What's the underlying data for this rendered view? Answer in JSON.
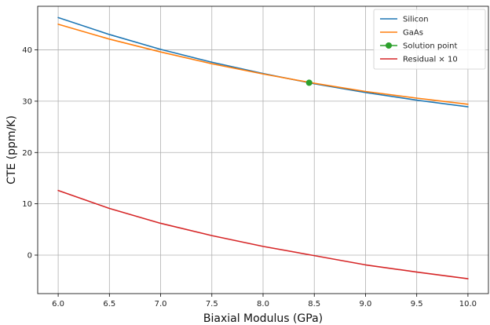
{
  "chart_data": {
    "type": "line",
    "title": "",
    "xlabel": "Biaxial Modulus (GPa)",
    "ylabel": "CTE (ppm/K)",
    "xlim": [
      5.8,
      10.2
    ],
    "ylim": [
      -7.5,
      48.5
    ],
    "xticks": [
      6.0,
      6.5,
      7.0,
      7.5,
      8.0,
      8.5,
      9.0,
      9.5,
      10.0
    ],
    "xtick_labels": [
      "6.0",
      "6.5",
      "7.0",
      "7.5",
      "8.0",
      "8.5",
      "9.0",
      "9.5",
      "10.0"
    ],
    "yticks": [
      0,
      10,
      20,
      30,
      40
    ],
    "ytick_labels": [
      "0",
      "10",
      "20",
      "30",
      "40"
    ],
    "grid": true,
    "legend_position": "top-right",
    "x": [
      6.0,
      6.5,
      7.0,
      7.5,
      8.0,
      8.5,
      9.0,
      9.5,
      10.0
    ],
    "series": [
      {
        "name": "Silicon",
        "color": "#1f77b4",
        "values": [
          46.3,
          43.0,
          40.1,
          37.6,
          35.4,
          33.4,
          31.7,
          30.2,
          28.9
        ]
      },
      {
        "name": "GaAs",
        "color": "#ff7f0e",
        "values": [
          45.0,
          42.1,
          39.6,
          37.3,
          35.3,
          33.5,
          31.9,
          30.6,
          29.4
        ]
      },
      {
        "name": "Residual × 10",
        "color": "#d62728",
        "values": [
          12.6,
          9.1,
          6.2,
          3.8,
          1.7,
          -0.1,
          -1.9,
          -3.3,
          -4.6
        ]
      }
    ],
    "points": [
      {
        "name": "Solution point",
        "color": "#2ca02c",
        "x": 8.45,
        "y": 33.6
      }
    ],
    "legend": [
      {
        "label": "Silicon",
        "color": "#1f77b4",
        "marker": false
      },
      {
        "label": "GaAs",
        "color": "#ff7f0e",
        "marker": false
      },
      {
        "label": "Solution point",
        "color": "#2ca02c",
        "marker": true
      },
      {
        "label": "Residual × 10",
        "color": "#d62728",
        "marker": false
      }
    ]
  }
}
